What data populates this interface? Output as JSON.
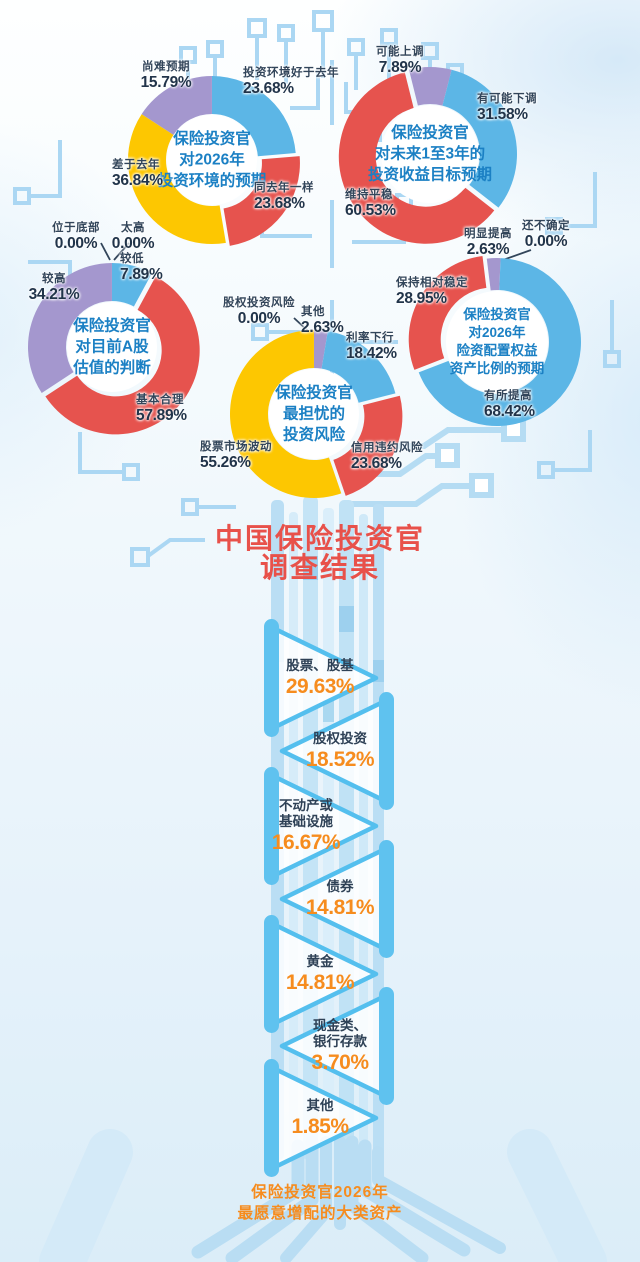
{
  "palette": {
    "blue": "#5cb6e6",
    "red": "#e6534e",
    "yellow": "#fdc701",
    "purple": "#a497ce",
    "center_text_blue": "#1b80c4",
    "label_navy": "#32455a",
    "title_red": "#e8514a",
    "accent_orange": "#f68c1e",
    "trace_blue": "#abd7f3",
    "triangle_stroke_blue": "#54bfee"
  },
  "title": {
    "lines": [
      "中国保险投资官",
      "调查结果"
    ]
  },
  "chart_data": [
    {
      "type": "pie",
      "title": "保险投资官对2026年投资环境的预期",
      "title_lines": [
        "保险投资官",
        "对2026年",
        "投资环境的预期"
      ],
      "categories": [
        "投资环境好于去年",
        "同去年一样",
        "差于去年",
        "尚难预期"
      ],
      "values": [
        23.68,
        23.68,
        36.84,
        15.79
      ],
      "labels_pct": [
        "23.68%",
        "23.68%",
        "36.84%",
        "15.79%"
      ],
      "colors": [
        "blue",
        "red",
        "yellow",
        "purple"
      ]
    },
    {
      "type": "pie",
      "title": "保险投资官对未来1至3年的投资收益目标预期",
      "title_lines": [
        "保险投资官",
        "对未来1至3年的",
        "投资收益目标预期"
      ],
      "categories": [
        "可能上调",
        "有可能下调",
        "维持平稳"
      ],
      "values": [
        7.89,
        31.58,
        60.53
      ],
      "labels_pct": [
        "7.89%",
        "31.58%",
        "60.53%"
      ],
      "colors": [
        "purple",
        "blue",
        "red"
      ]
    },
    {
      "type": "pie",
      "title": "保险投资官对目前A股估值的判断",
      "title_lines": [
        "保险投资官",
        "对目前A股",
        "估值的判断"
      ],
      "categories": [
        "位于底部",
        "太高",
        "较低",
        "基本合理",
        "较高"
      ],
      "values": [
        0.0,
        0.0,
        7.89,
        57.89,
        34.21
      ],
      "labels_pct": [
        "0.00%",
        "0.00%",
        "7.89%",
        "57.89%",
        "34.21%"
      ],
      "colors": [
        "blue",
        "red",
        "blue",
        "red",
        "purple"
      ]
    },
    {
      "type": "pie",
      "title": "保险投资官最担忧的投资风险",
      "title_lines": [
        "保险投资官",
        "最担忧的",
        "投资风险"
      ],
      "categories": [
        "股权投资风险",
        "其他",
        "利率下行",
        "信用违约风险",
        "股票市场波动"
      ],
      "values": [
        0.0,
        2.63,
        18.42,
        23.68,
        55.26
      ],
      "labels_pct": [
        "0.00%",
        "2.63%",
        "18.42%",
        "23.68%",
        "55.26%"
      ],
      "colors": [
        "purple",
        "purple",
        "blue",
        "red",
        "yellow"
      ]
    },
    {
      "type": "pie",
      "title": "保险投资官对2026年险资配置权益资产比例的预期",
      "title_lines": [
        "保险投资官",
        "对2026年",
        "险资配置权益",
        "资产比例的预期"
      ],
      "categories": [
        "明显提高",
        "还不确定",
        "有所提高",
        "保持相对稳定"
      ],
      "values": [
        2.63,
        0.0,
        68.42,
        28.95
      ],
      "labels_pct": [
        "2.63%",
        "0.00%",
        "68.42%",
        "28.95%"
      ],
      "colors": [
        "purple",
        "blue",
        "blue",
        "red"
      ]
    },
    {
      "type": "bar",
      "title": "保险投资官2026年最愿意增配的大类资产",
      "categories": [
        "股票、股基",
        "股权投资",
        "不动产或基础设施",
        "债券",
        "黄金",
        "现金类、银行存款",
        "其他"
      ],
      "categories_lines": [
        [
          "股票、股基"
        ],
        [
          "股权投资"
        ],
        [
          "不动产或",
          "基础设施"
        ],
        [
          "债券"
        ],
        [
          "黄金"
        ],
        [
          "现金类、",
          "银行存款"
        ],
        [
          "其他"
        ]
      ],
      "values": [
        29.63,
        18.52,
        16.67,
        14.81,
        14.81,
        3.7,
        1.85
      ],
      "labels_pct": [
        "29.63%",
        "18.52%",
        "16.67%",
        "14.81%",
        "14.81%",
        "3.70%",
        "1.85%"
      ],
      "caption_lines": [
        "保险投资官2026年",
        "最愿意增配的大类资产"
      ]
    }
  ]
}
